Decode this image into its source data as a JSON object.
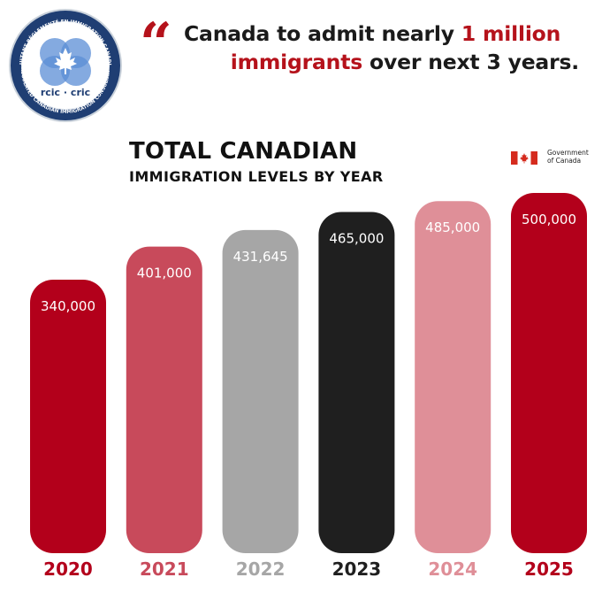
{
  "logo": {
    "ring_text_top": "CONSULTANT RÉGLEMENTÉ EN IMMIGRATION CANADIENNE",
    "ring_text_bottom": "REGULATED CANADIAN IMMIGRATION CONSULTANT",
    "label": "rcic · cric",
    "icon": "maple-leaf-icon",
    "ring_color": "#1f3e73",
    "inner_color": "#5b8ed6"
  },
  "headline": {
    "quote_icon": "quote-icon",
    "part1": "Canada to admit nearly ",
    "highlight1": "1 million",
    "highlight2": "immigrants",
    "part2": " over next 3 years."
  },
  "government": {
    "line1": "Government",
    "line2": "of Canada",
    "icon": "canada-flag-icon"
  },
  "chart_data": {
    "type": "bar",
    "title": "TOTAL CANADIAN",
    "subtitle": "IMMIGRATION LEVELS BY YEAR",
    "categories": [
      "2020",
      "2021",
      "2022",
      "2023",
      "2024",
      "2025"
    ],
    "values": [
      340000,
      401000,
      431645,
      465000,
      485000,
      500000
    ],
    "value_labels": [
      "340,000",
      "401,000",
      "431,645",
      "465,000",
      "485,000",
      "500,000"
    ],
    "colors": [
      "#b3001b",
      "#c84a5b",
      "#a6a6a6",
      "#1f1f1f",
      "#df8f98",
      "#b3001b"
    ],
    "grid": false,
    "legend": "none"
  }
}
